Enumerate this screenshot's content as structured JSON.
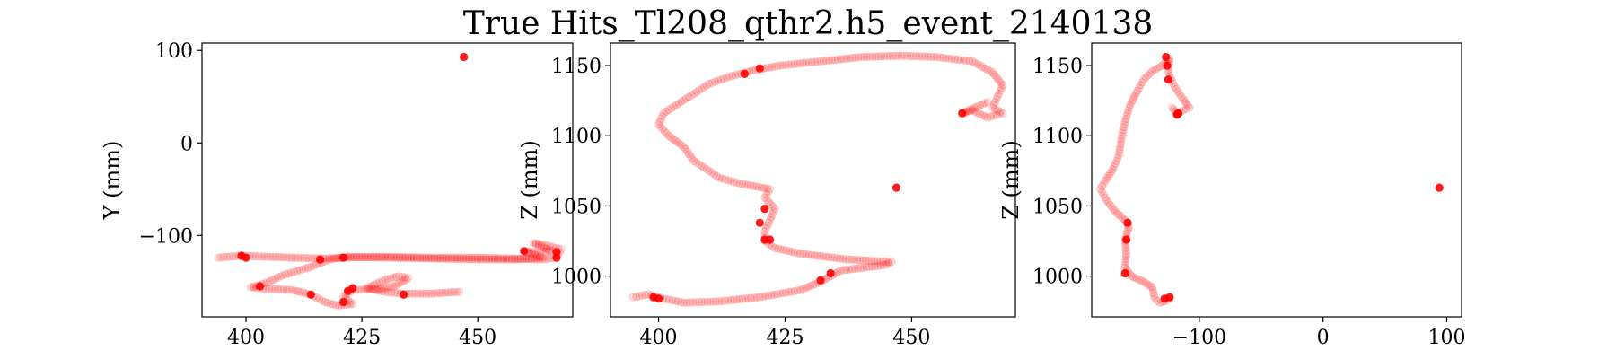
{
  "figure": {
    "title": "True Hits_Tl208_qthr2.h5_event_2140138"
  },
  "colors": {
    "marker": "#ff0000",
    "track_opacity": 0.14,
    "hit_opacity": 0.9
  },
  "chart_data": [
    {
      "type": "scatter",
      "id": "xy",
      "xlabel": "",
      "ylabel": "Y (mm)",
      "xlim": [
        390.5,
        470.5
      ],
      "ylim": [
        -188,
        108
      ],
      "xticks": [
        400,
        425,
        450
      ],
      "yticks": [
        -100,
        0,
        100
      ],
      "track_polyline": [
        [
          394,
          -124
        ],
        [
          399,
          -122
        ],
        [
          404,
          -123
        ],
        [
          410,
          -124
        ],
        [
          416,
          -125
        ],
        [
          422,
          -124
        ],
        [
          430,
          -123
        ],
        [
          440,
          -124
        ],
        [
          450,
          -124
        ],
        [
          458,
          -125
        ],
        [
          464,
          -126
        ],
        [
          467,
          -124
        ],
        [
          468,
          -115
        ],
        [
          465,
          -111
        ],
        [
          462,
          -108
        ],
        [
          466,
          -117
        ],
        [
          463,
          -118
        ],
        [
          460,
          -117
        ],
        [
          464,
          -124
        ],
        [
          458,
          -126
        ],
        [
          450,
          -126
        ],
        [
          440,
          -125
        ],
        [
          430,
          -124
        ],
        [
          422,
          -123
        ],
        [
          418,
          -126
        ],
        [
          414,
          -134
        ],
        [
          408,
          -143
        ],
        [
          404,
          -152
        ],
        [
          401,
          -156
        ],
        [
          405,
          -158
        ],
        [
          410,
          -159
        ],
        [
          414,
          -164
        ],
        [
          417,
          -172
        ],
        [
          420,
          -176
        ],
        [
          423,
          -174
        ],
        [
          421,
          -166
        ],
        [
          423,
          -159
        ],
        [
          428,
          -158
        ],
        [
          432,
          -155
        ],
        [
          435,
          -146
        ],
        [
          433,
          -144
        ],
        [
          430,
          -148
        ],
        [
          426,
          -157
        ],
        [
          430,
          -161
        ],
        [
          434,
          -163
        ],
        [
          440,
          -163
        ],
        [
          446,
          -161
        ]
      ],
      "hits": [
        [
          447,
          93
        ],
        [
          399,
          -122
        ],
        [
          400,
          -124
        ],
        [
          416,
          -126
        ],
        [
          421,
          -124
        ],
        [
          460,
          -117
        ],
        [
          467,
          -124
        ],
        [
          467,
          -118
        ],
        [
          403,
          -155
        ],
        [
          414,
          -164
        ],
        [
          423,
          -157
        ],
        [
          422,
          -160
        ],
        [
          421,
          -172
        ],
        [
          434,
          -164
        ]
      ]
    },
    {
      "type": "scatter",
      "id": "xz",
      "xlabel": "",
      "ylabel": "Z (mm)",
      "xlim": [
        390.5,
        470.5
      ],
      "ylim": [
        971,
        1166
      ],
      "xticks": [
        400,
        425,
        450
      ],
      "yticks": [
        1000,
        1050,
        1100,
        1150
      ],
      "track_polyline": [
        [
          395,
          985
        ],
        [
          398,
          987
        ],
        [
          401,
          984
        ],
        [
          405,
          981
        ],
        [
          412,
          982
        ],
        [
          420,
          985
        ],
        [
          428,
          990
        ],
        [
          432,
          996
        ],
        [
          436,
          1004
        ],
        [
          445,
          1008
        ],
        [
          446,
          1010
        ],
        [
          437,
          1012
        ],
        [
          428,
          1016
        ],
        [
          423,
          1020
        ],
        [
          421,
          1025
        ],
        [
          421,
          1032
        ],
        [
          422,
          1040
        ],
        [
          423,
          1048
        ],
        [
          421,
          1056
        ],
        [
          422,
          1062
        ],
        [
          416,
          1066
        ],
        [
          412,
          1070
        ],
        [
          410,
          1075
        ],
        [
          407,
          1082
        ],
        [
          405,
          1092
        ],
        [
          402,
          1100
        ],
        [
          400,
          1108
        ],
        [
          401,
          1116
        ],
        [
          404,
          1123
        ],
        [
          407,
          1130
        ],
        [
          410,
          1137
        ],
        [
          414,
          1142
        ],
        [
          418,
          1146
        ],
        [
          424,
          1150
        ],
        [
          432,
          1153
        ],
        [
          440,
          1156
        ],
        [
          448,
          1157
        ],
        [
          455,
          1156
        ],
        [
          462,
          1153
        ],
        [
          466,
          1145
        ],
        [
          468,
          1136
        ],
        [
          467,
          1128
        ],
        [
          466,
          1120
        ],
        [
          468,
          1116
        ],
        [
          465,
          1113
        ],
        [
          462,
          1118
        ],
        [
          460,
          1116
        ],
        [
          465,
          1124
        ]
      ],
      "hits": [
        [
          447,
          1063
        ],
        [
          417,
          1144
        ],
        [
          420,
          1148
        ],
        [
          460,
          1116
        ],
        [
          434,
          1002
        ],
        [
          432,
          997
        ],
        [
          400,
          984
        ],
        [
          399,
          985
        ],
        [
          421,
          1026
        ],
        [
          422,
          1026
        ],
        [
          420,
          1038
        ],
        [
          421,
          1048
        ]
      ]
    },
    {
      "type": "scatter",
      "id": "yz",
      "xlabel": "",
      "ylabel": "Z (mm)",
      "xlim": [
        -187,
        112
      ],
      "ylim": [
        971,
        1166
      ],
      "xticks": [
        -100,
        0,
        100
      ],
      "yticks": [
        1000,
        1050,
        1100,
        1150
      ],
      "track_polyline": [
        [
          -124,
          984
        ],
        [
          -128,
          982
        ],
        [
          -132,
          981
        ],
        [
          -136,
          984
        ],
        [
          -138,
          992
        ],
        [
          -145,
          996
        ],
        [
          -155,
          1000
        ],
        [
          -160,
          1006
        ],
        [
          -159,
          1016
        ],
        [
          -160,
          1026
        ],
        [
          -157,
          1035
        ],
        [
          -160,
          1040
        ],
        [
          -168,
          1046
        ],
        [
          -175,
          1054
        ],
        [
          -180,
          1062
        ],
        [
          -176,
          1068
        ],
        [
          -170,
          1076
        ],
        [
          -165,
          1086
        ],
        [
          -163,
          1098
        ],
        [
          -160,
          1110
        ],
        [
          -156,
          1122
        ],
        [
          -150,
          1132
        ],
        [
          -145,
          1140
        ],
        [
          -138,
          1146
        ],
        [
          -130,
          1150
        ],
        [
          -124,
          1155
        ],
        [
          -125,
          1145
        ],
        [
          -120,
          1135
        ],
        [
          -113,
          1126
        ],
        [
          -108,
          1120
        ],
        [
          -113,
          1118
        ],
        [
          -118,
          1116
        ],
        [
          -122,
          1120
        ]
      ],
      "hits": [
        [
          94,
          1063
        ],
        [
          -127,
          1156
        ],
        [
          -126,
          1150
        ],
        [
          -125,
          1140
        ],
        [
          -117,
          1116
        ],
        [
          -118,
          1115
        ],
        [
          -159,
          1026
        ],
        [
          -158,
          1038
        ],
        [
          -160,
          1002
        ],
        [
          -124,
          985
        ],
        [
          -128,
          984
        ]
      ]
    }
  ]
}
